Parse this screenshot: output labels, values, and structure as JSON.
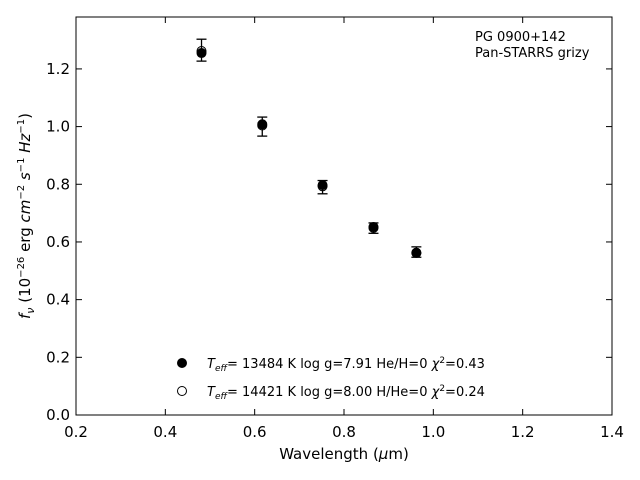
{
  "chart_data": {
    "type": "scatter",
    "title": "",
    "annotation": [
      "PG 0900+142",
      "Pan-STARRS grizy"
    ],
    "annotation_position": "top-right",
    "xlabel": "Wavelength (μm)",
    "ylabel": "fν (10⁻²⁶ erg cm⁻² s⁻¹ Hz⁻¹)",
    "xlim": [
      0.2,
      1.4
    ],
    "ylim": [
      0.0,
      1.38
    ],
    "xticks": [
      "0.2",
      "0.4",
      "0.6",
      "0.8",
      "1.0",
      "1.2",
      "1.4"
    ],
    "yticks": [
      "0.0",
      "0.2",
      "0.4",
      "0.6",
      "0.8",
      "1.0",
      "1.2"
    ],
    "grid": false,
    "legend_position": "bottom-center",
    "observed": {
      "x": [
        0.481,
        0.617,
        0.752,
        0.866,
        0.962
      ],
      "y": [
        1.265,
        1.0,
        0.79,
        0.648,
        0.565
      ],
      "yerr": [
        0.038,
        0.033,
        0.023,
        0.018,
        0.018
      ]
    },
    "series": [
      {
        "name": "Teff= 13484 K  log g=7.91  He/H=0  χ²=0.43",
        "marker": "filled",
        "x": [
          0.481,
          0.617,
          0.752,
          0.866,
          0.962
        ],
        "y": [
          1.255,
          1.008,
          0.797,
          0.652,
          0.563
        ]
      },
      {
        "name": "Teff= 14421 K  log g=8.00  H/He=0  χ²=0.24",
        "marker": "open",
        "x": [
          0.481,
          0.617,
          0.752,
          0.866,
          0.962
        ],
        "y": [
          1.262,
          1.004,
          0.793,
          0.649,
          0.562
        ]
      }
    ],
    "legend": [
      {
        "teff": "13484 K",
        "logg": "log g=7.91",
        "comp": "He/H=0",
        "chi": "=0.43"
      },
      {
        "teff": "14421 K",
        "logg": "log g=8.00",
        "comp": "H/He=0",
        "chi": "=0.24"
      }
    ],
    "colors": {
      "marker": "#000000",
      "axes": "#000000"
    }
  }
}
